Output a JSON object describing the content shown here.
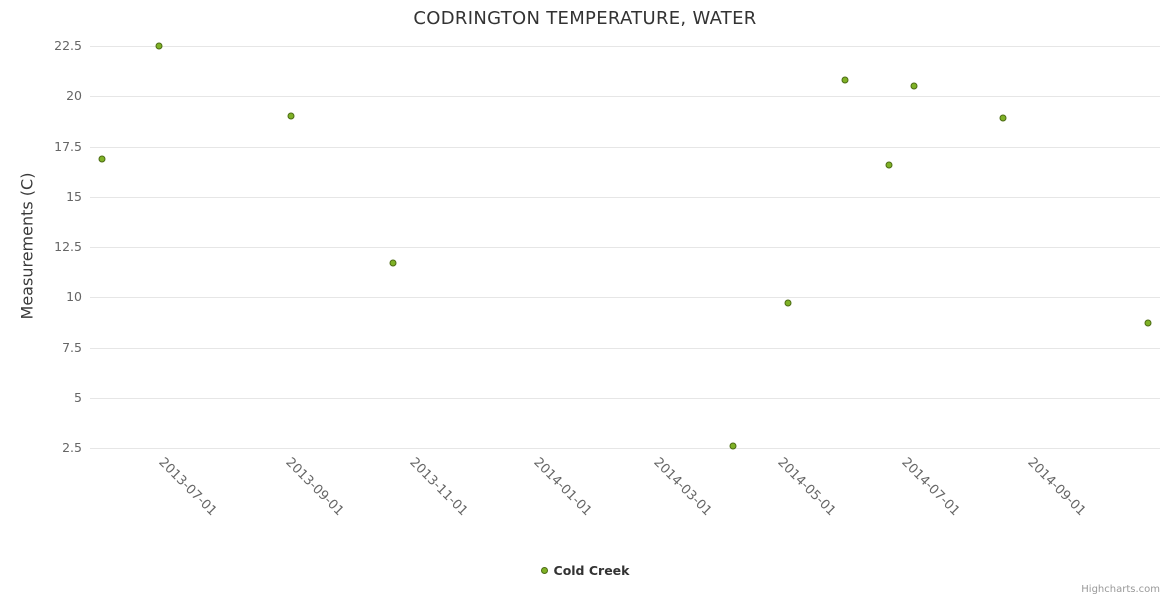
{
  "credit": "Highcharts.com",
  "colors": {
    "background": "#ffffff",
    "title_text": "#333333",
    "axis_title_text": "#3a3a3a",
    "tick_label_text": "#666666",
    "grid_line": "#e6e6e6",
    "point_fill": "#7fb226",
    "point_border": "#4c6b14",
    "legend_text": "#333333",
    "credit_text": "#999999"
  },
  "chart_data": {
    "type": "scatter",
    "title": "CODRINGTON TEMPERATURE, WATER",
    "xlabel": "",
    "ylabel": "Measurements (C)",
    "x_axis_type": "datetime",
    "xlim": [
      "2013-05-23",
      "2014-10-31"
    ],
    "ylim": [
      2.5,
      22.5
    ],
    "grid": "horizontal",
    "legend_position": "bottom-center",
    "yticks": [
      "2.5",
      "5",
      "7.5",
      "10",
      "12.5",
      "15",
      "17.5",
      "20",
      "22.5"
    ],
    "ytick_values": [
      2.5,
      5,
      7.5,
      10,
      12.5,
      15,
      17.5,
      20,
      22.5
    ],
    "xticks": [
      "2013-07-01",
      "2013-09-01",
      "2013-11-01",
      "2014-01-01",
      "2014-03-01",
      "2014-05-01",
      "2014-07-01",
      "2014-09-01"
    ],
    "series": [
      {
        "name": "Cold Creek",
        "points": [
          {
            "x": "2013-05-29",
            "y": 16.9
          },
          {
            "x": "2013-06-26",
            "y": 22.5
          },
          {
            "x": "2013-08-30",
            "y": 19.0
          },
          {
            "x": "2013-10-19",
            "y": 11.7
          },
          {
            "x": "2014-04-04",
            "y": 2.6
          },
          {
            "x": "2014-05-01",
            "y": 9.7
          },
          {
            "x": "2014-05-29",
            "y": 20.8
          },
          {
            "x": "2014-06-20",
            "y": 16.6
          },
          {
            "x": "2014-07-02",
            "y": 20.5
          },
          {
            "x": "2014-08-15",
            "y": 18.9
          },
          {
            "x": "2014-10-25",
            "y": 8.7
          }
        ]
      }
    ]
  }
}
